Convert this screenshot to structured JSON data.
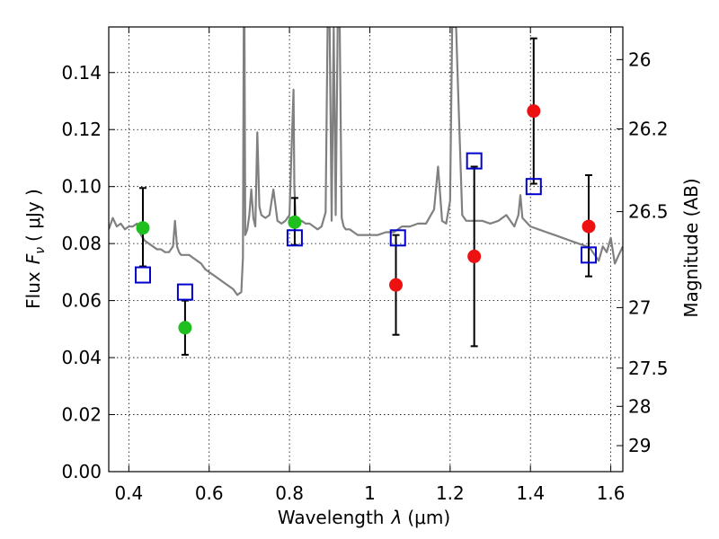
{
  "chart_data": {
    "type": "scatter",
    "xlabel": "Wavelength",
    "xlabel_symbol": "λ",
    "xlabel_unit": "(μm)",
    "ylabel": "Flux",
    "ylabel_symbol": "F",
    "ylabel_subscript": "ν",
    "ylabel_unit": "( μJy )",
    "y2label": "Magnitude (AB)",
    "xlim": [
      0.35,
      1.63
    ],
    "ylim": [
      0.0,
      0.156
    ],
    "grid": true,
    "x_ticks": [
      0.4,
      0.6,
      0.8,
      1.0,
      1.2,
      1.4,
      1.6
    ],
    "x_tick_labels": [
      "0.4",
      "0.6",
      "0.8",
      "1",
      "1.2",
      "1.4",
      "1.6"
    ],
    "y_ticks": [
      0.0,
      0.02,
      0.04,
      0.06,
      0.08,
      0.1,
      0.12,
      0.14
    ],
    "y_tick_labels": [
      "0.00",
      "0.02",
      "0.04",
      "0.06",
      "0.08",
      "0.10",
      "0.12",
      "0.14"
    ],
    "mag_ticks": [
      26,
      26.2,
      26.5,
      27,
      27.5,
      28,
      29
    ],
    "mag_tick_labels": [
      "26",
      "26.2",
      "26.5",
      "27",
      "27.5",
      "28",
      "29"
    ],
    "colors": {
      "sed": "#808080",
      "green_points": "#1fbf1f",
      "red_points": "#ee1111",
      "model_squares": "#0000cc",
      "errorbars": "#000000"
    },
    "series": [
      {
        "name": "model SED",
        "kind": "line",
        "x": [
          0.35,
          0.36,
          0.37,
          0.38,
          0.39,
          0.4,
          0.41,
          0.42,
          0.43,
          0.44,
          0.45,
          0.46,
          0.47,
          0.48,
          0.49,
          0.5,
          0.51,
          0.515,
          0.52,
          0.525,
          0.53,
          0.54,
          0.55,
          0.56,
          0.57,
          0.58,
          0.59,
          0.6,
          0.62,
          0.64,
          0.66,
          0.67,
          0.68,
          0.684,
          0.686,
          0.688,
          0.69,
          0.695,
          0.7,
          0.705,
          0.71,
          0.715,
          0.72,
          0.725,
          0.73,
          0.74,
          0.75,
          0.76,
          0.77,
          0.78,
          0.79,
          0.8,
          0.805,
          0.81,
          0.812,
          0.815,
          0.82,
          0.83,
          0.84,
          0.85,
          0.86,
          0.87,
          0.88,
          0.89,
          0.895,
          0.9,
          0.905,
          0.91,
          0.915,
          0.92,
          0.925,
          0.93,
          0.935,
          0.94,
          0.95,
          0.96,
          0.97,
          0.98,
          1.0,
          1.02,
          1.04,
          1.06,
          1.08,
          1.1,
          1.12,
          1.14,
          1.16,
          1.17,
          1.18,
          1.19,
          1.2,
          1.205,
          1.21,
          1.215,
          1.22,
          1.23,
          1.24,
          1.25,
          1.26,
          1.27,
          1.28,
          1.3,
          1.32,
          1.34,
          1.36,
          1.37,
          1.375,
          1.38,
          1.4,
          1.42,
          1.44,
          1.46,
          1.48,
          1.5,
          1.52,
          1.54,
          1.55,
          1.56,
          1.57,
          1.58,
          1.59,
          1.6,
          1.61,
          1.62,
          1.63
        ],
        "y": [
          0.085,
          0.089,
          0.086,
          0.087,
          0.085,
          0.086,
          0.086,
          0.087,
          0.083,
          0.081,
          0.08,
          0.079,
          0.078,
          0.078,
          0.077,
          0.077,
          0.079,
          0.088,
          0.079,
          0.077,
          0.076,
          0.076,
          0.076,
          0.075,
          0.074,
          0.073,
          0.071,
          0.07,
          0.068,
          0.066,
          0.064,
          0.062,
          0.063,
          0.075,
          0.156,
          0.156,
          0.083,
          0.085,
          0.09,
          0.099,
          0.089,
          0.086,
          0.119,
          0.093,
          0.09,
          0.089,
          0.09,
          0.099,
          0.088,
          0.087,
          0.088,
          0.09,
          0.112,
          0.134,
          0.1,
          0.09,
          0.088,
          0.088,
          0.087,
          0.087,
          0.086,
          0.085,
          0.086,
          0.091,
          0.156,
          0.156,
          0.088,
          0.156,
          0.09,
          0.156,
          0.156,
          0.089,
          0.086,
          0.085,
          0.085,
          0.084,
          0.083,
          0.083,
          0.083,
          0.083,
          0.084,
          0.084,
          0.086,
          0.086,
          0.087,
          0.087,
          0.092,
          0.107,
          0.088,
          0.087,
          0.095,
          0.156,
          0.156,
          0.156,
          0.133,
          0.09,
          0.088,
          0.088,
          0.088,
          0.088,
          0.088,
          0.087,
          0.088,
          0.09,
          0.086,
          0.09,
          0.097,
          0.089,
          0.086,
          0.085,
          0.084,
          0.083,
          0.082,
          0.081,
          0.08,
          0.079,
          0.078,
          0.076,
          0.074,
          0.079,
          0.077,
          0.082,
          0.073,
          0.076,
          0.079
        ]
      },
      {
        "name": "observed (green)",
        "kind": "points",
        "points": [
          {
            "x": 0.435,
            "y": 0.0855,
            "err_low": 0.072,
            "err_high": 0.0995
          },
          {
            "x": 0.54,
            "y": 0.0505,
            "err_low": 0.041,
            "err_high": 0.06
          },
          {
            "x": 0.813,
            "y": 0.0875,
            "err_low": 0.0795,
            "err_high": 0.096
          }
        ]
      },
      {
        "name": "observed (red)",
        "kind": "points",
        "points": [
          {
            "x": 1.065,
            "y": 0.0655,
            "err_low": 0.048,
            "err_high": 0.083
          },
          {
            "x": 1.26,
            "y": 0.0755,
            "err_low": 0.044,
            "err_high": 0.107
          },
          {
            "x": 1.408,
            "y": 0.1265,
            "err_low": 0.101,
            "err_high": 0.152
          },
          {
            "x": 1.545,
            "y": 0.086,
            "err_low": 0.0685,
            "err_high": 0.104
          }
        ]
      },
      {
        "name": "model photometry",
        "kind": "squares",
        "points": [
          {
            "x": 0.435,
            "y": 0.069
          },
          {
            "x": 0.54,
            "y": 0.063
          },
          {
            "x": 0.813,
            "y": 0.082
          },
          {
            "x": 1.07,
            "y": 0.082
          },
          {
            "x": 1.26,
            "y": 0.109
          },
          {
            "x": 1.408,
            "y": 0.1
          },
          {
            "x": 1.545,
            "y": 0.076
          }
        ]
      }
    ]
  }
}
